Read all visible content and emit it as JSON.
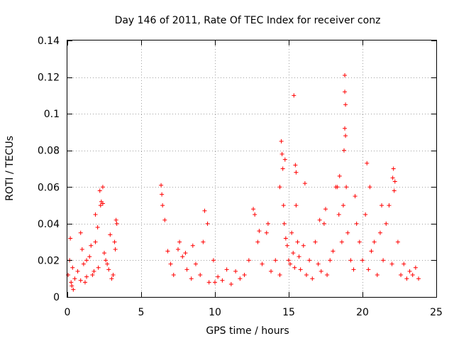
{
  "chart_data": {
    "type": "scatter",
    "title": "Day 146 of 2011, Rate Of TEC Index for receiver conz",
    "xlabel": "GPS time / hours",
    "ylabel": "ROTI / TECUs",
    "xlim": [
      0,
      25
    ],
    "ylim": [
      0,
      0.14
    ],
    "xticks": [
      0,
      5,
      10,
      15,
      20,
      25
    ],
    "xtick_labels": [
      "0",
      "5",
      "10",
      "15",
      "20",
      "25"
    ],
    "yticks": [
      0,
      0.02,
      0.04,
      0.06,
      0.08,
      0.1,
      0.12,
      0.14
    ],
    "ytick_labels": [
      "0",
      "0.02",
      "0.04",
      "0.06",
      "0.08",
      "0.1",
      "0.12",
      "0.14"
    ],
    "grid": true,
    "marker": "+",
    "color": "#ff0000",
    "series": [
      {
        "x": [
          0.05,
          0.15,
          0.25,
          0.35,
          0.5,
          0.7,
          0.9,
          1.1,
          1.3,
          1.5,
          1.7,
          1.9,
          2.1,
          2.25,
          2.4,
          2.6,
          2.8,
          3.0,
          3.2,
          3.35,
          0.2,
          0.3,
          0.9,
          1.0,
          1.3,
          1.6,
          1.9,
          2.05,
          2.2,
          2.3,
          2.4,
          2.5,
          2.9,
          3.1,
          3.3,
          0.4,
          1.2,
          1.8,
          2.7,
          3.25,
          6.35,
          6.45,
          6.6,
          6.8,
          7.0,
          7.2,
          7.5,
          7.8,
          8.1,
          8.4,
          8.7,
          9.0,
          9.3,
          9.6,
          9.9,
          10.2,
          10.5,
          10.8,
          11.1,
          11.4,
          11.7,
          12.0,
          12.3,
          12.6,
          12.9,
          13.2,
          13.5,
          13.8,
          14.1,
          14.4,
          6.4,
          7.6,
          8.0,
          8.5,
          9.2,
          9.5,
          10.0,
          12.7,
          13.0,
          13.6,
          14.4,
          14.5,
          14.55,
          14.6,
          14.65,
          14.7,
          14.8,
          14.9,
          15.0,
          15.1,
          15.2,
          15.3,
          15.4,
          15.5,
          15.6,
          15.7,
          15.8,
          16.0,
          16.2,
          16.4,
          16.6,
          16.8,
          17.0,
          17.2,
          17.4,
          17.6,
          17.8,
          18.0,
          18.2,
          18.4,
          18.6,
          18.7,
          18.75,
          18.8,
          18.85,
          18.9,
          19.0,
          19.2,
          19.4,
          19.6,
          19.8,
          20.0,
          20.2,
          20.4,
          20.6,
          20.8,
          21.0,
          21.2,
          21.4,
          21.6,
          21.8,
          22.0,
          22.1,
          22.2,
          22.4,
          22.6,
          22.8,
          23.0,
          23.2,
          23.4,
          23.6,
          23.8,
          14.75,
          15.35,
          15.45,
          15.5,
          16.1,
          17.1,
          17.5,
          18.3,
          18.45,
          18.8,
          18.8,
          18.85,
          19.5,
          20.3,
          20.5,
          21.3,
          22.05,
          22.15
        ],
        "y": [
          0.012,
          0.02,
          0.008,
          0.016,
          0.01,
          0.014,
          0.009,
          0.018,
          0.011,
          0.022,
          0.012,
          0.03,
          0.016,
          0.05,
          0.06,
          0.02,
          0.015,
          0.01,
          0.03,
          0.04,
          0.032,
          0.006,
          0.035,
          0.026,
          0.02,
          0.028,
          0.045,
          0.038,
          0.058,
          0.052,
          0.051,
          0.024,
          0.034,
          0.012,
          0.042,
          0.004,
          0.008,
          0.014,
          0.018,
          0.026,
          0.061,
          0.05,
          0.042,
          0.025,
          0.018,
          0.012,
          0.026,
          0.022,
          0.015,
          0.01,
          0.018,
          0.012,
          0.047,
          0.008,
          0.02,
          0.011,
          0.009,
          0.015,
          0.007,
          0.014,
          0.01,
          0.012,
          0.02,
          0.048,
          0.03,
          0.018,
          0.035,
          0.014,
          0.02,
          0.012,
          0.056,
          0.03,
          0.024,
          0.028,
          0.03,
          0.04,
          0.008,
          0.045,
          0.036,
          0.04,
          0.06,
          0.085,
          0.078,
          0.07,
          0.05,
          0.04,
          0.032,
          0.028,
          0.02,
          0.018,
          0.035,
          0.024,
          0.016,
          0.05,
          0.03,
          0.022,
          0.015,
          0.028,
          0.012,
          0.02,
          0.01,
          0.03,
          0.018,
          0.014,
          0.04,
          0.012,
          0.02,
          0.025,
          0.06,
          0.045,
          0.03,
          0.05,
          0.08,
          0.112,
          0.105,
          0.06,
          0.035,
          0.02,
          0.015,
          0.04,
          0.03,
          0.02,
          0.045,
          0.015,
          0.025,
          0.03,
          0.012,
          0.035,
          0.02,
          0.04,
          0.05,
          0.018,
          0.07,
          0.063,
          0.03,
          0.012,
          0.018,
          0.01,
          0.014,
          0.012,
          0.016,
          0.01,
          0.075,
          0.11,
          0.072,
          0.068,
          0.062,
          0.042,
          0.048,
          0.06,
          0.066,
          0.121,
          0.092,
          0.088,
          0.055,
          0.073,
          0.06,
          0.05,
          0.065,
          0.058
        ]
      }
    ]
  }
}
